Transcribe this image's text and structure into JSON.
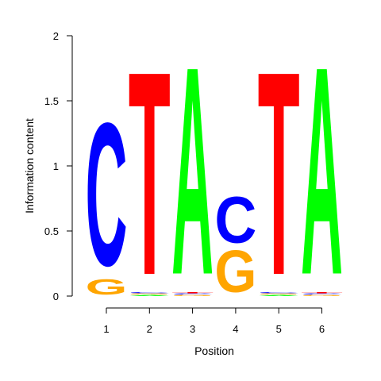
{
  "chart_data": {
    "type": "sequence-logo",
    "xlabel": "Position",
    "ylabel": "Information content",
    "ylim": [
      0,
      2
    ],
    "yticks": [
      {
        "value": 0,
        "label": "0"
      },
      {
        "value": 0.5,
        "label": "0.5"
      },
      {
        "value": 1,
        "label": "1"
      },
      {
        "value": 1.5,
        "label": "1.5"
      },
      {
        "value": 2,
        "label": "2"
      }
    ],
    "positions": [
      {
        "label": "1",
        "letters": [
          {
            "base": "G",
            "height": 0.14
          },
          {
            "base": "C",
            "height": 1.3
          }
        ]
      },
      {
        "label": "2",
        "letters": [
          {
            "base": "A",
            "height": 0.01
          },
          {
            "base": "G",
            "height": 0.01
          },
          {
            "base": "C",
            "height": 0.01
          },
          {
            "base": "T",
            "height": 1.85
          }
        ]
      },
      {
        "label": "3",
        "letters": [
          {
            "base": "G",
            "height": 0.01
          },
          {
            "base": "C",
            "height": 0.01
          },
          {
            "base": "T",
            "height": 0.01
          },
          {
            "base": "A",
            "height": 1.89
          }
        ]
      },
      {
        "label": "4",
        "letters": [
          {
            "base": "G",
            "height": 0.38
          },
          {
            "base": "C",
            "height": 0.42
          }
        ]
      },
      {
        "label": "5",
        "letters": [
          {
            "base": "A",
            "height": 0.01
          },
          {
            "base": "G",
            "height": 0.01
          },
          {
            "base": "C",
            "height": 0.01
          },
          {
            "base": "T",
            "height": 1.85
          }
        ]
      },
      {
        "label": "6",
        "letters": [
          {
            "base": "G",
            "height": 0.01
          },
          {
            "base": "C",
            "height": 0.01
          },
          {
            "base": "T",
            "height": 0.01
          },
          {
            "base": "A",
            "height": 1.89
          }
        ]
      }
    ],
    "colors": {
      "A": "#00ff00",
      "C": "#0000ff",
      "G": "#ffa500",
      "T": "#ff0000"
    }
  }
}
